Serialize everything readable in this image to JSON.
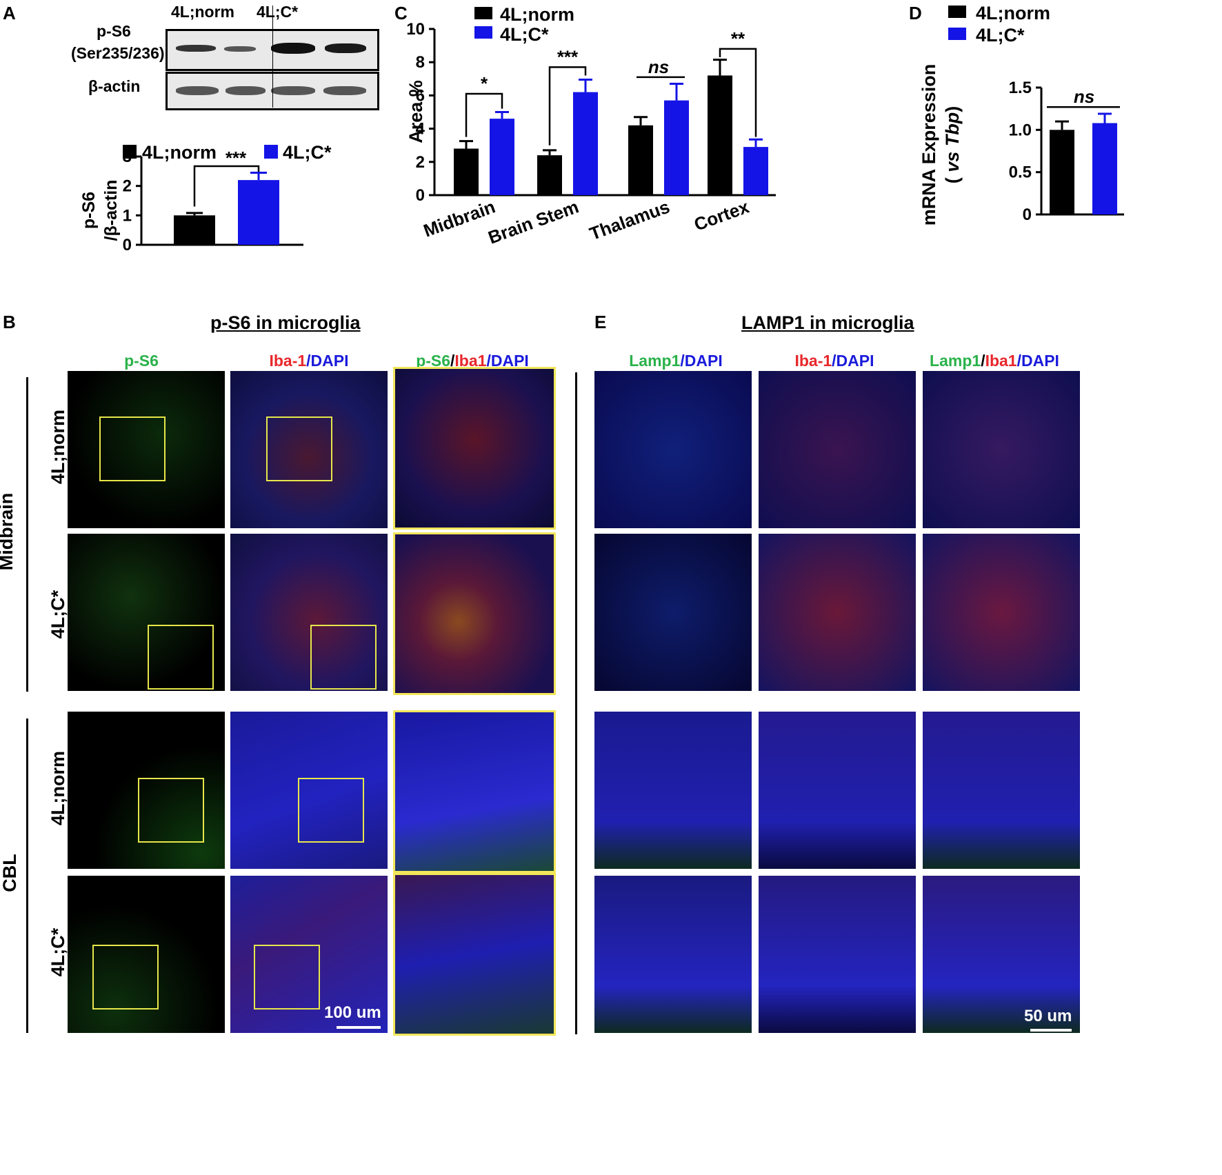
{
  "panel_a": {
    "letter": "A",
    "lanes": [
      "4L;norm",
      "4L;C*"
    ],
    "blot_labels": [
      "p-S6",
      "(Ser235/236)",
      "β-actin"
    ],
    "legend": [
      "4L;norm",
      "4L;C*"
    ],
    "ylabel": [
      "p-S6",
      "/β-actin"
    ],
    "sig": "***"
  },
  "panel_c": {
    "letter": "C",
    "legend": [
      "4L;norm",
      "4L;C*"
    ],
    "ylabel": "Area %"
  },
  "panel_d": {
    "letter": "D",
    "legend": [
      "4L;norm",
      "4L;C*"
    ],
    "ylabel": "mRNA Expression",
    "ylabel2_open": "( ",
    "ylabel2_vs": "vs",
    "ylabel2_tbp": "Tbp",
    "ylabel2_close": ")"
  },
  "panel_b": {
    "letter": "B",
    "title": "p-S6 in microglia",
    "cols": {
      "c1": "p-S6",
      "c2_a": "Iba-1",
      "c2_b": "/DAPI",
      "c3_a": "p-S6",
      "c3_b": "/",
      "c3_c": "Iba1",
      "c3_d": "/DAPI"
    },
    "rows": [
      "4L;norm",
      "4L;C*",
      "4L;norm",
      "4L;C*"
    ],
    "regions": [
      "Midbrain",
      "CBL"
    ],
    "scale": "100 um"
  },
  "panel_e": {
    "letter": "E",
    "title": "LAMP1 in microglia",
    "cols": {
      "c1_a": "Lamp1",
      "c1_b": "/DAPI",
      "c2_a": "Iba-1",
      "c2_b": "/DAPI",
      "c3_a": "Lamp1",
      "c3_b": "/",
      "c3_c": "Iba1",
      "c3_d": "/DAPI"
    },
    "scale": "50 um"
  },
  "colors": {
    "norm": "#000000",
    "cstar": "#1414e6",
    "roi": "#e7e74a"
  },
  "chart_data": [
    {
      "id": "A",
      "type": "bar",
      "categories": [
        "4L;norm",
        "4L;C*"
      ],
      "values": [
        1.0,
        2.2
      ],
      "errors": [
        0.08,
        0.25
      ],
      "ylim": [
        0,
        3
      ],
      "yticks": [
        0,
        1,
        2,
        3
      ],
      "ylabel": "p-S6 /β-actin",
      "annotations": [
        "***"
      ]
    },
    {
      "id": "C",
      "type": "bar",
      "categories": [
        "Midbrain",
        "Brain Stem",
        "Thalamus",
        "Cortex"
      ],
      "series": [
        {
          "name": "4L;norm",
          "values": [
            2.8,
            2.4,
            4.2,
            7.2
          ],
          "errors": [
            0.45,
            0.3,
            0.5,
            0.95
          ]
        },
        {
          "name": "4L;C*",
          "values": [
            4.6,
            6.2,
            5.7,
            2.9
          ],
          "errors": [
            0.4,
            0.75,
            1.0,
            0.45
          ]
        }
      ],
      "ylim": [
        0,
        10
      ],
      "yticks": [
        0,
        2,
        4,
        6,
        8,
        10
      ],
      "ylabel": "Area %",
      "annotations": [
        "*",
        "***",
        "ns",
        "**"
      ]
    },
    {
      "id": "D",
      "type": "bar",
      "categories": [
        "4L;norm",
        "4L;C*"
      ],
      "values": [
        1.0,
        1.08
      ],
      "errors": [
        0.1,
        0.11
      ],
      "ylim": [
        0,
        1.5
      ],
      "yticks": [
        "0",
        "0.5",
        "1.0",
        "1.5"
      ],
      "ylabel": "mRNA Expression ( vs Tbp)",
      "annotations": [
        "ns"
      ]
    }
  ]
}
